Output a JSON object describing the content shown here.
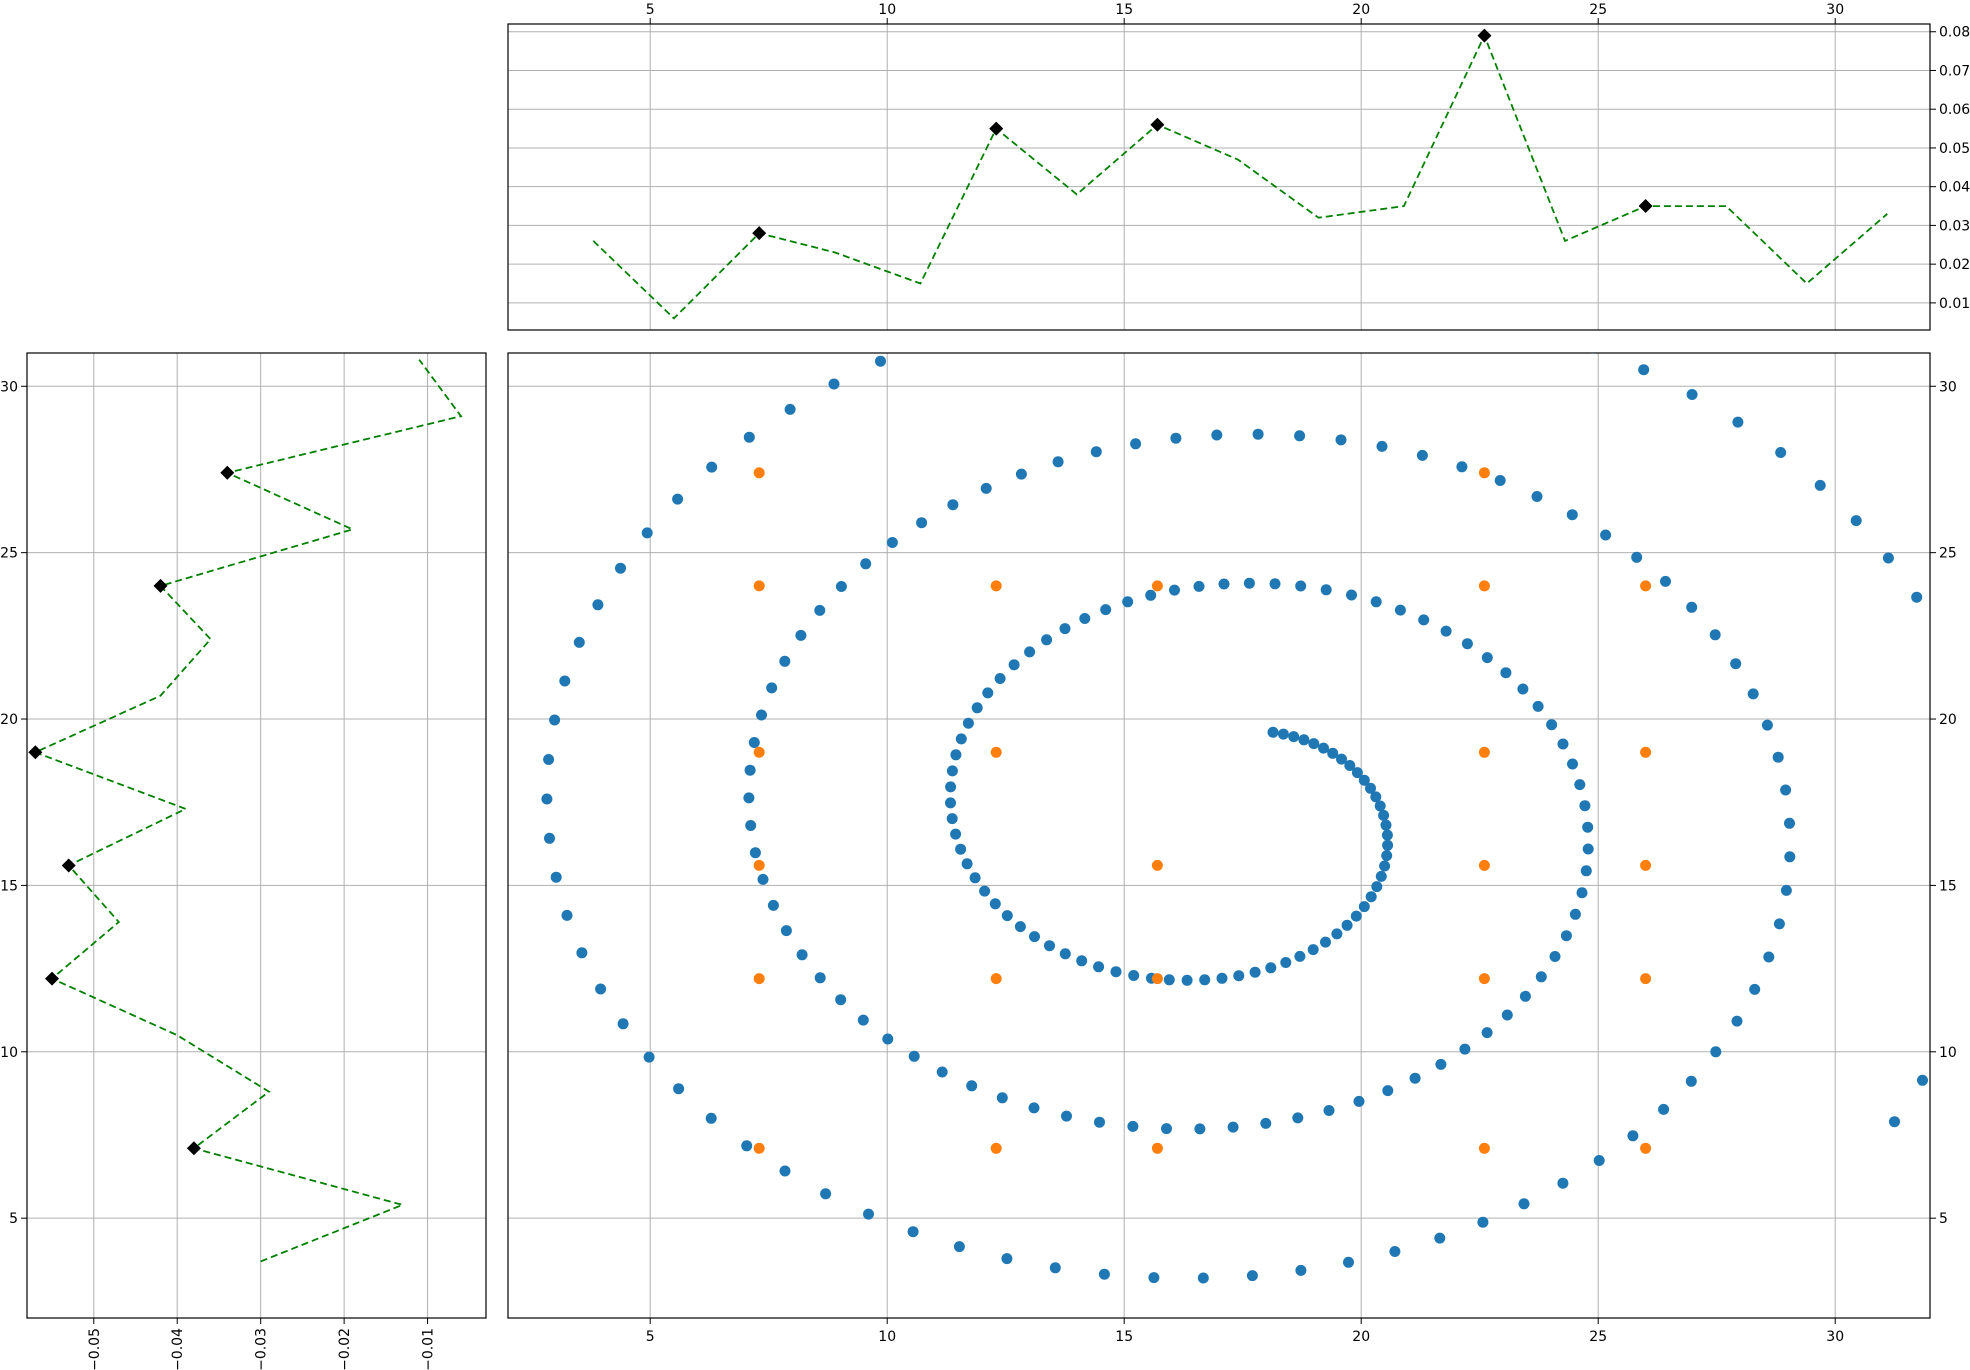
{
  "chart_data": [
    {
      "panel": "main",
      "type": "scatter",
      "title": "",
      "xlabel": "",
      "ylabel": "",
      "xlim": [
        2,
        32
      ],
      "ylim": [
        2,
        31
      ],
      "grid": true,
      "y_ticks_side": "right",
      "xticks": [
        5,
        10,
        15,
        20,
        25,
        30
      ],
      "yticks": [
        5,
        10,
        15,
        20,
        25,
        30
      ],
      "series": [
        {
          "color": "#1f77b4",
          "marker": "circle",
          "shape": "spiral",
          "center": [
            17,
            17
          ],
          "start_point": [
            18.2,
            19.6
          ],
          "end_point": [
            32,
            7.9
          ],
          "approx_count": 260
        },
        {
          "color": "#ff7f0e",
          "marker": "circle",
          "grid_x": [
            7.3,
            12.3,
            15.7,
            22.6,
            26
          ],
          "grid_y": [
            7.1,
            12.2,
            15.6,
            19,
            24,
            27.4
          ],
          "missing_points": [
            [
              12.3,
              15.6
            ],
            [
              15.7,
              19
            ],
            [
              12.3,
              27.4
            ],
            [
              15.7,
              27.4
            ],
            [
              26,
              27.4
            ]
          ]
        }
      ]
    },
    {
      "panel": "top",
      "type": "line",
      "title": "",
      "xlim": [
        2,
        32
      ],
      "ylim": [
        0.003,
        0.082
      ],
      "grid": true,
      "y_ticks_side": "right",
      "xticks": [
        5,
        10,
        15,
        20,
        25,
        30
      ],
      "yticks": [
        0.01,
        0.02,
        0.03,
        0.04,
        0.05,
        0.06,
        0.07,
        0.08
      ],
      "line": {
        "color": "#008000",
        "style": "dashed",
        "x": [
          3.8,
          5.5,
          7.3,
          8.9,
          10.7,
          12.3,
          14.0,
          15.7,
          17.4,
          19.1,
          20.9,
          22.6,
          24.3,
          26.0,
          27.7,
          29.4,
          31.1
        ],
        "y": [
          0.026,
          0.006,
          0.028,
          0.023,
          0.015,
          0.055,
          0.038,
          0.056,
          0.047,
          0.032,
          0.035,
          0.079,
          0.026,
          0.035,
          0.035,
          0.015,
          0.033
        ]
      },
      "markers": {
        "color": "#000000",
        "marker": "diamond",
        "x": [
          7.3,
          12.3,
          15.7,
          22.6,
          26.0
        ],
        "y": [
          0.028,
          0.055,
          0.056,
          0.079,
          0.035
        ]
      }
    },
    {
      "panel": "left",
      "type": "line",
      "title": "",
      "xlim": [
        -0.058,
        -0.003
      ],
      "ylim": [
        2,
        31
      ],
      "grid": true,
      "xticks": [
        -0.05,
        -0.04,
        -0.03,
        -0.02,
        -0.01
      ],
      "xtick_labels": [
        "−0.05",
        "−0.04",
        "−0.03",
        "−0.02",
        "−0.01"
      ],
      "yticks": [
        5,
        10,
        15,
        20,
        25,
        30
      ],
      "line": {
        "color": "#008000",
        "style": "dashed",
        "x": [
          -0.03,
          -0.013,
          -0.038,
          -0.029,
          -0.04,
          -0.055,
          -0.047,
          -0.053,
          -0.039,
          -0.057,
          -0.042,
          -0.036,
          -0.042,
          -0.019,
          -0.034,
          -0.006,
          -0.011
        ],
        "y": [
          3.7,
          5.4,
          7.1,
          8.8,
          10.5,
          12.2,
          13.9,
          15.6,
          17.3,
          19.0,
          20.7,
          22.4,
          24.0,
          25.7,
          27.4,
          29.1,
          30.8
        ]
      },
      "markers": {
        "color": "#000000",
        "marker": "diamond",
        "x": [
          -0.038,
          -0.055,
          -0.053,
          -0.057,
          -0.042,
          -0.034
        ],
        "y": [
          7.1,
          12.2,
          15.6,
          19.0,
          24.0,
          27.4
        ]
      }
    }
  ]
}
